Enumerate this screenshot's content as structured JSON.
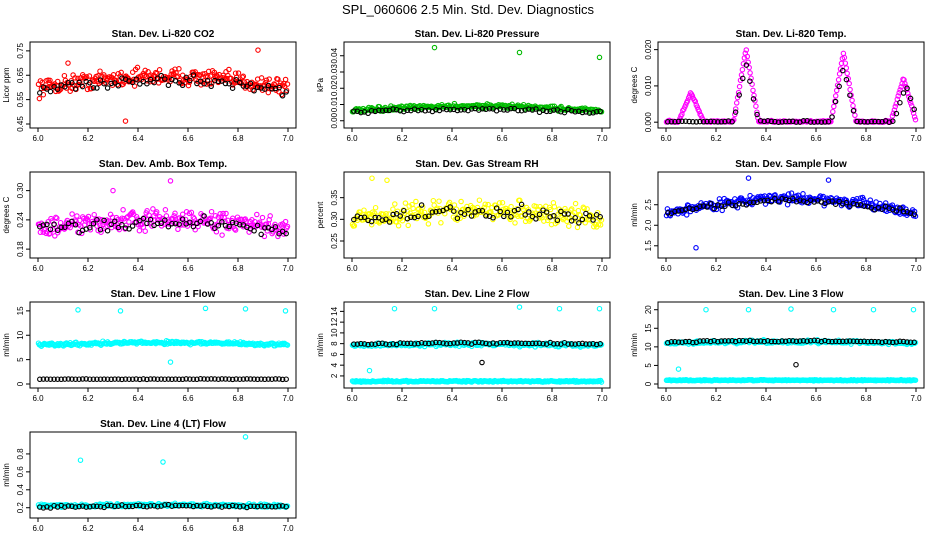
{
  "figure_title": "SPL_060606  2.5 Min. Std. Dev. Diagnostics",
  "chart_data": [
    {
      "type": "scatter",
      "title": "Stan. Dev. Li-820 CO2",
      "ylabel": "Licor ppm",
      "color": "#ff0000",
      "xlim": [
        6.0,
        7.0
      ],
      "ylim": [
        0.45,
        0.77
      ],
      "xticks": [
        "6.0",
        "6.2",
        "6.4",
        "6.6",
        "6.8",
        "7.0"
      ],
      "yticks": [
        "0.45",
        "0.55",
        "0.65",
        "0.75"
      ],
      "series": [
        {
          "name": "all",
          "base": 0.6,
          "amp": 0.045,
          "noise": 0.1,
          "outliers": [
            [
              0.35,
              0.462
            ],
            [
              0.12,
              0.7
            ],
            [
              0.88,
              0.753
            ]
          ]
        },
        {
          "name": "black",
          "base": 0.59,
          "amp": 0.04,
          "noise": 0.08
        }
      ]
    },
    {
      "type": "scatter",
      "title": "Stan. Dev. Li-820 Pressure",
      "ylabel": "kPa",
      "color": "#00bb00",
      "xlim": [
        6.0,
        7.0
      ],
      "ylim": [
        -0.002,
        0.046
      ],
      "xticks": [
        "6.0",
        "6.2",
        "6.4",
        "6.6",
        "6.8",
        "7.0"
      ],
      "yticks": [
        "0.00",
        "0.01",
        "0.02",
        "0.03",
        "0.04"
      ],
      "series": [
        {
          "name": "all",
          "base": 0.006,
          "amp": 0.003,
          "noise": 0.004,
          "outliers": [
            [
              0.33,
              0.045
            ],
            [
              0.67,
              0.042
            ],
            [
              0.99,
              0.039
            ]
          ]
        },
        {
          "name": "black",
          "base": 0.005,
          "amp": 0.002,
          "noise": 0.003
        }
      ]
    },
    {
      "type": "scatter",
      "title": "Stan. Dev. Li-820 Temp.",
      "ylabel": "degrees C",
      "color": "#ff00ff",
      "xlim": [
        6.0,
        7.0
      ],
      "ylim": [
        -0.0005,
        0.021
      ],
      "xticks": [
        "6.0",
        "6.2",
        "6.4",
        "6.6",
        "6.8",
        "7.0"
      ],
      "yticks": [
        "0.000",
        "0.010",
        "0.020"
      ],
      "series": [
        {
          "name": "all",
          "shape": "peaks",
          "peaks": [
            [
              0.32,
              0.02
            ],
            [
              0.71,
              0.019
            ],
            [
              0.95,
              0.012
            ],
            [
              0.1,
              0.008
            ]
          ],
          "outliers": []
        },
        {
          "name": "black",
          "shape": "peaks",
          "peaks": [
            [
              0.32,
              0.016
            ],
            [
              0.71,
              0.015
            ],
            [
              0.96,
              0.01
            ]
          ]
        }
      ]
    },
    {
      "type": "scatter",
      "title": "Stan. Dev. Amb. Box Temp.",
      "ylabel": "degrees C",
      "color": "#ff00ff",
      "xlim": [
        6.0,
        7.0
      ],
      "ylim": [
        0.17,
        0.33
      ],
      "xticks": [
        "6.0",
        "6.2",
        "6.4",
        "6.6",
        "6.8",
        "7.0"
      ],
      "yticks": [
        "0.18",
        "0.24",
        "0.30"
      ],
      "series": [
        {
          "name": "all",
          "base": 0.22,
          "amp": 0.02,
          "noise": 0.06,
          "outliers": [
            [
              0.53,
              0.32
            ],
            [
              0.3,
              0.3
            ]
          ]
        },
        {
          "name": "black",
          "base": 0.22,
          "amp": 0.015,
          "noise": 0.04
        }
      ]
    },
    {
      "type": "scatter",
      "title": "Stan. Dev. Gas Stream RH",
      "ylabel": "percent",
      "color": "#ffff00",
      "xlim": [
        6.0,
        7.0
      ],
      "ylim": [
        0.22,
        0.4
      ],
      "xticks": [
        "6.0",
        "6.2",
        "6.4",
        "6.6",
        "6.8",
        "7.0"
      ],
      "yticks": [
        "0.25",
        "0.30",
        "0.35"
      ],
      "series": [
        {
          "name": "all",
          "base": 0.3,
          "amp": 0.02,
          "noise": 0.07,
          "outliers": [
            [
              0.08,
              0.395
            ],
            [
              0.14,
              0.39
            ]
          ]
        },
        {
          "name": "black",
          "base": 0.3,
          "amp": 0.015,
          "noise": 0.05
        }
      ]
    },
    {
      "type": "scatter",
      "title": "Stan. Dev. Sample Flow",
      "ylabel": "ml/min",
      "color": "#0000ff",
      "xlim": [
        6.0,
        7.0
      ],
      "ylim": [
        1.3,
        3.2
      ],
      "xticks": [
        "6.0",
        "6.2",
        "6.4",
        "6.6",
        "6.8",
        "7.0"
      ],
      "yticks": [
        "1.5",
        "2.0",
        "2.5"
      ],
      "series": [
        {
          "name": "all",
          "base": 2.3,
          "amp": 0.35,
          "noise": 0.35,
          "outliers": [
            [
              0.33,
              3.15
            ],
            [
              0.65,
              3.1
            ],
            [
              0.12,
              1.45
            ]
          ]
        },
        {
          "name": "black",
          "base": 2.3,
          "amp": 0.3,
          "noise": 0.2
        }
      ]
    },
    {
      "type": "scatter",
      "title": "Stan. Dev. Line 1 Flow",
      "ylabel": "ml/min",
      "color": "#00ffff",
      "xlim": [
        6.0,
        7.0
      ],
      "ylim": [
        0,
        16
      ],
      "xticks": [
        "6.0",
        "6.2",
        "6.4",
        "6.6",
        "6.8",
        "7.0"
      ],
      "yticks": [
        "0",
        "5",
        "10",
        "15"
      ],
      "series": [
        {
          "name": "all",
          "base": 8.0,
          "amp": 0.5,
          "noise": 1.0,
          "outliers": [
            [
              0.16,
              15.2
            ],
            [
              0.33,
              15.0
            ],
            [
              0.67,
              15.5
            ],
            [
              0.83,
              15.4
            ],
            [
              0.99,
              15.0
            ],
            [
              0.53,
              4.5
            ]
          ]
        },
        {
          "name": "black",
          "base": 1.0,
          "amp": 0.0,
          "noise": 0.15
        }
      ]
    },
    {
      "type": "scatter",
      "title": "Stan. Dev. Line 2 Flow",
      "ylabel": "ml/min",
      "color": "#00ffff",
      "xlim": [
        6.0,
        7.0
      ],
      "ylim": [
        0.5,
        15
      ],
      "xticks": [
        "6.0",
        "6.2",
        "6.4",
        "6.6",
        "6.8",
        "7.0"
      ],
      "yticks": [
        "2",
        "4",
        "6",
        "8",
        "10",
        "12",
        "14"
      ],
      "series": [
        {
          "name": "all",
          "base": 7.7,
          "amp": 0.2,
          "noise": 1.0,
          "low": 1.0,
          "outliers": [
            [
              0.17,
              14.5
            ],
            [
              0.33,
              14.5
            ],
            [
              0.67,
              14.8
            ],
            [
              0.83,
              14.5
            ],
            [
              0.99,
              14.5
            ],
            [
              0.07,
              3.0
            ]
          ]
        },
        {
          "name": "black",
          "base": 7.9,
          "amp": 0.2,
          "noise": 0.5,
          "outliers": [
            [
              0.52,
              4.5
            ]
          ]
        }
      ]
    },
    {
      "type": "scatter",
      "title": "Stan. Dev. Line 3 Flow",
      "ylabel": "ml/min",
      "color": "#00ffff",
      "xlim": [
        6.0,
        7.0
      ],
      "ylim": [
        0,
        21
      ],
      "xticks": [
        "6.0",
        "6.2",
        "6.4",
        "6.6",
        "6.8",
        "7.0"
      ],
      "yticks": [
        "0",
        "5",
        "10",
        "15",
        "20"
      ],
      "series": [
        {
          "name": "all",
          "base": 11.0,
          "amp": 0.4,
          "noise": 1.2,
          "low": 1.0,
          "outliers": [
            [
              0.16,
              20.0
            ],
            [
              0.33,
              20.0
            ],
            [
              0.5,
              20.2
            ],
            [
              0.67,
              20.0
            ],
            [
              0.83,
              20.0
            ],
            [
              0.99,
              20.0
            ],
            [
              0.05,
              4.0
            ]
          ]
        },
        {
          "name": "black",
          "base": 11.3,
          "amp": 0.3,
          "noise": 0.6,
          "outliers": [
            [
              0.52,
              5.2
            ]
          ]
        }
      ]
    },
    {
      "type": "scatter",
      "title": "Stan. Dev. Line 4 (LT) Flow",
      "ylabel": "ml/min",
      "color": "#00ffff",
      "xlim": [
        6.0,
        7.0
      ],
      "ylim": [
        0.13,
        1.0
      ],
      "xticks": [
        "6.0",
        "6.2",
        "6.4",
        "6.6",
        "6.8",
        "7.0"
      ],
      "yticks": [
        "0.2",
        "0.4",
        "0.6",
        "0.8"
      ],
      "series": [
        {
          "name": "all",
          "base": 0.22,
          "amp": 0.01,
          "noise": 0.05,
          "outliers": [
            [
              0.17,
              0.73
            ],
            [
              0.5,
              0.71
            ],
            [
              0.83,
              0.99
            ]
          ]
        },
        {
          "name": "black",
          "base": 0.21,
          "amp": 0.01,
          "noise": 0.04
        }
      ]
    }
  ]
}
